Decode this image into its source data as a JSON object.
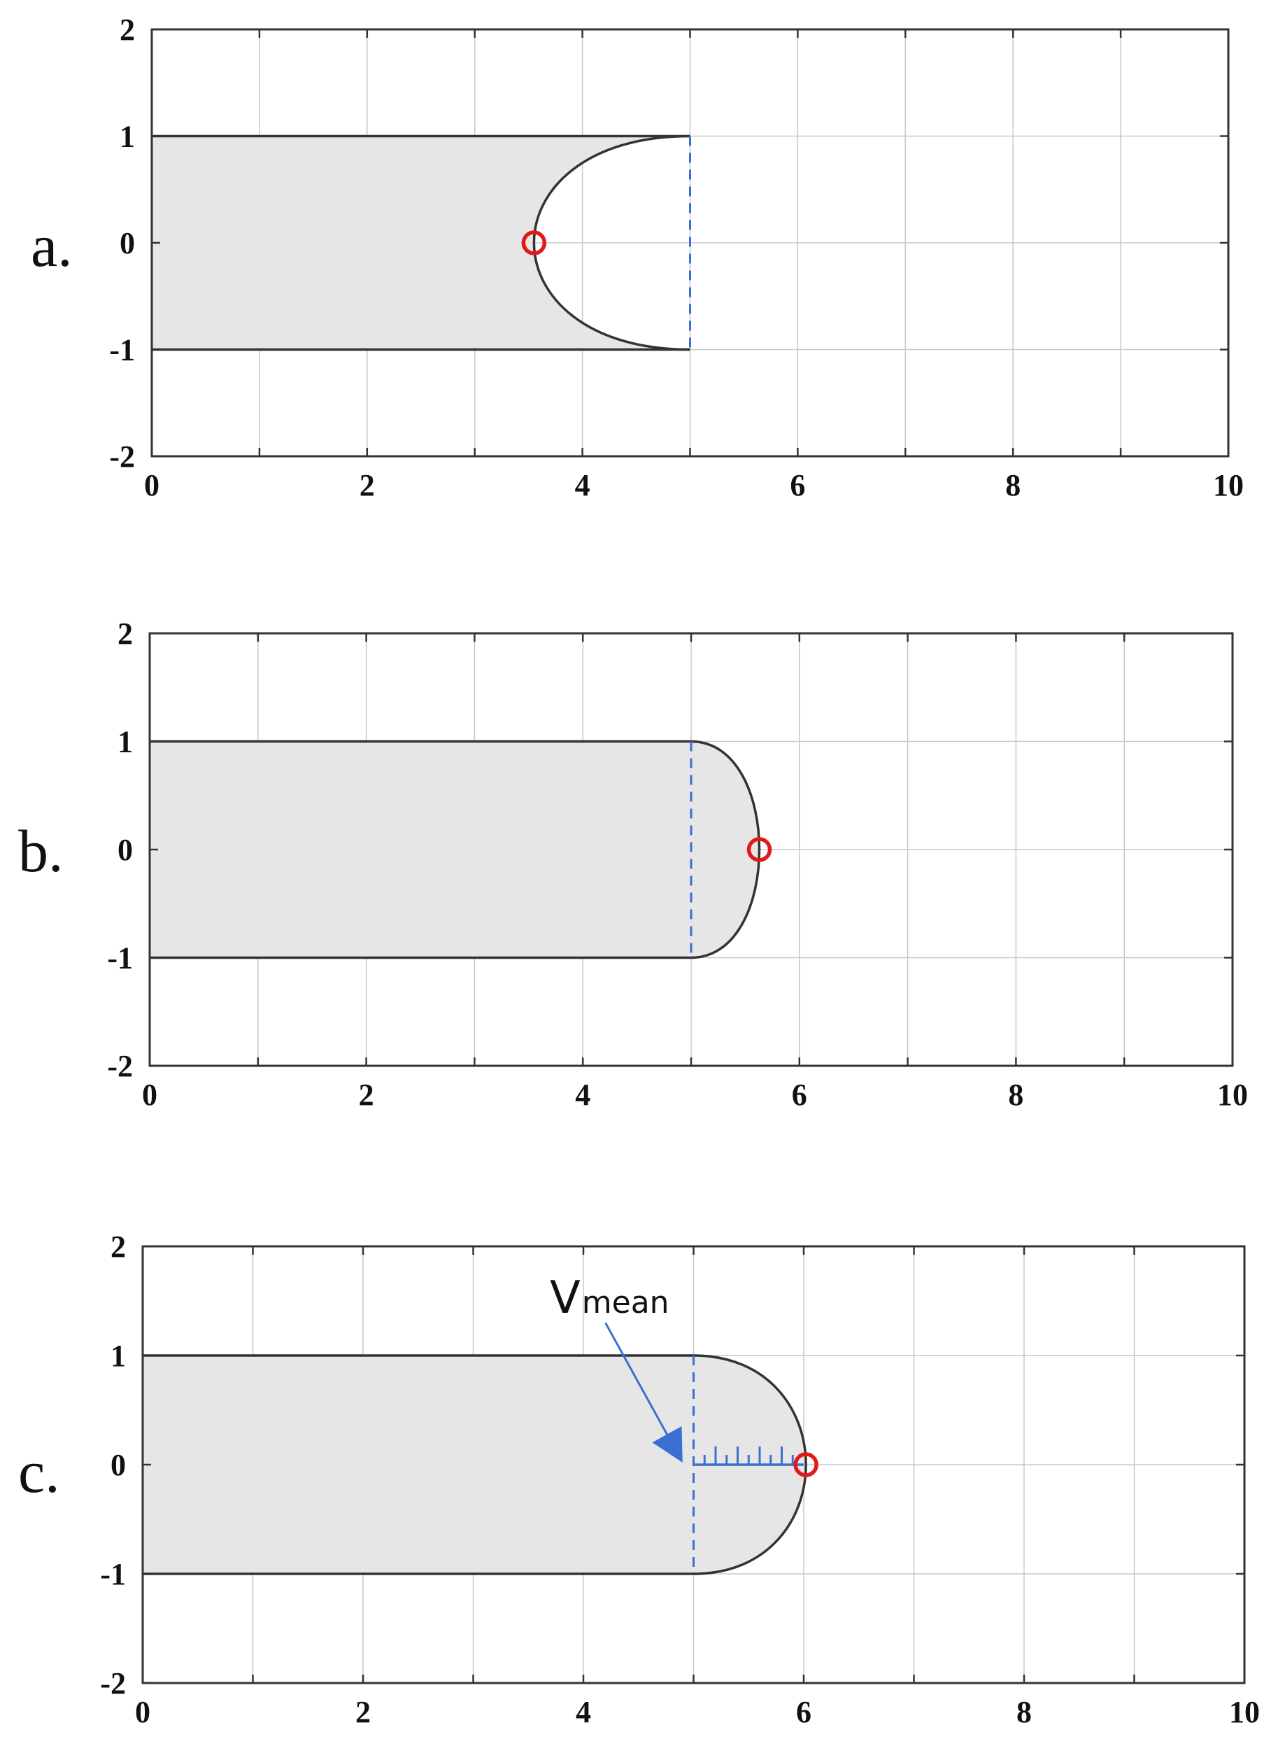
{
  "chart_data": [
    {
      "type": "area",
      "panel_label": "a.",
      "xlim": [
        0,
        10
      ],
      "ylim": [
        -2,
        2
      ],
      "x_ticks": [
        0,
        2,
        4,
        6,
        8,
        10
      ],
      "y_ticks": [
        2,
        1,
        0,
        -1,
        -2
      ],
      "grid": true,
      "region": {
        "x_start": 0,
        "front_base_x": 5,
        "front_apex_x": 3.55,
        "y_top": 1,
        "y_bottom": -1
      },
      "dashed_line_x": 5,
      "marker": {
        "x": 3.55,
        "y": 0
      },
      "colors": {
        "fill": "#e6e6e6",
        "outline": "#333333",
        "dashed": "#3b6fd1",
        "marker": "#e01a1a"
      }
    },
    {
      "type": "area",
      "panel_label": "b.",
      "xlim": [
        0,
        10
      ],
      "ylim": [
        -2,
        2
      ],
      "x_ticks": [
        0,
        2,
        4,
        6,
        8,
        10
      ],
      "y_ticks": [
        2,
        1,
        0,
        -1,
        -2
      ],
      "grid": true,
      "region": {
        "x_start": 0,
        "front_base_x": 5,
        "front_apex_x": 5.63,
        "y_top": 1,
        "y_bottom": -1
      },
      "dashed_line_x": 5,
      "marker": {
        "x": 5.63,
        "y": 0
      },
      "colors": {
        "fill": "#e6e6e6",
        "outline": "#333333",
        "dashed": "#3b6fd1",
        "marker": "#e01a1a"
      }
    },
    {
      "type": "area",
      "panel_label": "c.",
      "xlim": [
        0,
        10
      ],
      "ylim": [
        -2,
        2
      ],
      "x_ticks": [
        0,
        2,
        4,
        6,
        8,
        10
      ],
      "y_ticks": [
        2,
        1,
        0,
        -1,
        -2
      ],
      "grid": true,
      "region": {
        "x_start": 0,
        "front_base_x": 5,
        "front_apex_x": 6.02,
        "y_top": 1,
        "y_bottom": -1
      },
      "dashed_line_x": 5,
      "marker": {
        "x": 6.02,
        "y": 0
      },
      "annotation": {
        "text_main": "V",
        "text_sub": "mean",
        "arrow_from": {
          "x": 4.2,
          "y": 1.3
        },
        "arrow_to": {
          "x": 4.9,
          "y": 0.02
        },
        "scale_bar": {
          "x_start": 5,
          "x_end": 6,
          "y": 0,
          "minor_ticks": 10
        }
      },
      "colors": {
        "fill": "#e6e6e6",
        "outline": "#333333",
        "dashed": "#3b6fd1",
        "marker": "#e01a1a",
        "annotation": "#3b6fd1"
      }
    }
  ]
}
